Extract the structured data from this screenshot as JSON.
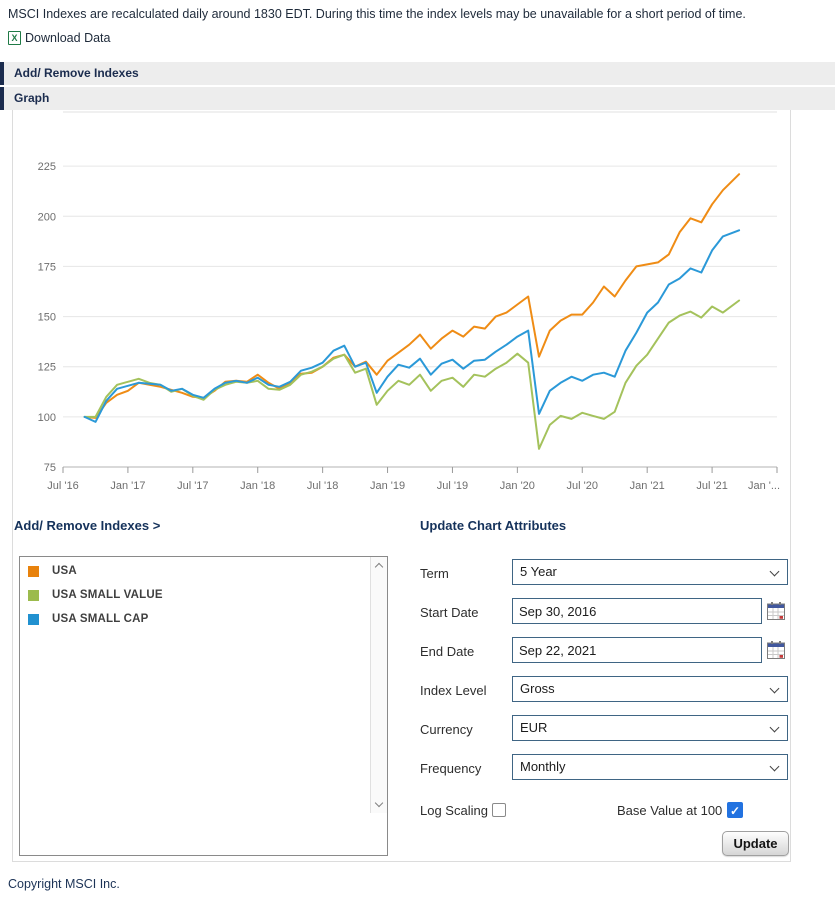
{
  "notice": "MSCI Indexes are recalculated daily around 1830 EDT. During this time the index levels may be unavailable for a short period of time.",
  "download": {
    "label": "Download Data",
    "icon_glyph": "X"
  },
  "section_bars": {
    "add_remove": "Add/ Remove Indexes",
    "graph": "Graph"
  },
  "legend_panel": {
    "heading": "Add/ Remove Indexes >",
    "items": [
      {
        "label": "USA",
        "color": "#e8820c"
      },
      {
        "label": "USA SMALL VALUE",
        "color": "#9cbb4d"
      },
      {
        "label": "USA SMALL CAP",
        "color": "#2191d0"
      }
    ]
  },
  "form": {
    "heading": "Update Chart Attributes",
    "term": {
      "label": "Term",
      "value": "5 Year"
    },
    "start_date": {
      "label": "Start Date",
      "value": "Sep 30, 2016"
    },
    "end_date": {
      "label": "End Date",
      "value": "Sep 22, 2021"
    },
    "index_level": {
      "label": "Index Level",
      "value": "Gross"
    },
    "currency": {
      "label": "Currency",
      "value": "EUR"
    },
    "frequency": {
      "label": "Frequency",
      "value": "Monthly"
    },
    "log_scaling": {
      "label": "Log Scaling",
      "checked": false
    },
    "base_value": {
      "label": "Base Value at 100",
      "checked": true
    },
    "update_label": "Update"
  },
  "icons": {
    "check": "✓"
  },
  "footer": {
    "copyright": "Copyright MSCI Inc."
  },
  "chart_data": {
    "type": "line",
    "title": "",
    "xlabel": "",
    "ylabel": "",
    "grid": true,
    "legend_position": "listbox-below-left",
    "y_ticks": [
      75,
      100,
      125,
      150,
      175,
      200,
      225
    ],
    "ylim": [
      75,
      252
    ],
    "x_unit": "months_after_jul_2016",
    "x_first_point_month": 2,
    "x_last_point_month": 62.5,
    "x_axis_months_span": 66,
    "x_ticks": [
      {
        "m": 0,
        "label": "Jul '16"
      },
      {
        "m": 6,
        "label": "Jan '17"
      },
      {
        "m": 12,
        "label": "Jul '17"
      },
      {
        "m": 18,
        "label": "Jan '18"
      },
      {
        "m": 24,
        "label": "Jul '18"
      },
      {
        "m": 30,
        "label": "Jan '19"
      },
      {
        "m": 36,
        "label": "Jul '19"
      },
      {
        "m": 42,
        "label": "Jan '20"
      },
      {
        "m": 48,
        "label": "Jul '20"
      },
      {
        "m": 54,
        "label": "Jan '21"
      },
      {
        "m": 60,
        "label": "Jul '21"
      },
      {
        "m": 66,
        "label": "Jan '..."
      }
    ],
    "point_dates": "monthly Sep 2016 through Aug 2021, final point Sep 22 2021, base value 100 at Sep 30 2016",
    "series": [
      {
        "name": "USA",
        "color": "#ef8c15",
        "values": [
          100,
          99.5,
          107,
          111,
          113,
          117,
          116,
          115,
          113.5,
          112,
          110,
          109.5,
          113,
          117.5,
          118,
          117.5,
          121,
          117,
          114,
          117,
          121.5,
          122,
          125,
          129.5,
          131,
          125,
          127.5,
          121,
          128,
          132,
          136,
          141,
          134,
          139,
          143,
          140,
          145,
          144,
          150,
          152,
          156,
          160,
          130,
          143,
          148,
          151,
          151,
          157,
          165,
          160,
          168,
          175,
          176,
          177,
          181,
          192,
          199,
          197,
          206,
          213,
          221
        ]
      },
      {
        "name": "USA SMALL VALUE",
        "color": "#a4c25c",
        "values": [
          100,
          100,
          110,
          116,
          117.5,
          119,
          117,
          116,
          112.5,
          114,
          110.5,
          108.5,
          113.5,
          116,
          117.5,
          117,
          118,
          114,
          113.5,
          116,
          121,
          122.5,
          125,
          129,
          131,
          122,
          124,
          106,
          113,
          118,
          116,
          121,
          113,
          118,
          119.5,
          115,
          121,
          120,
          124,
          127,
          131.5,
          127,
          84,
          96,
          100.5,
          99,
          102,
          100.5,
          99,
          102.5,
          117,
          125.5,
          131,
          139,
          147,
          150.5,
          152.5,
          149.5,
          155,
          152,
          158
        ]
      },
      {
        "name": "USA SMALL CAP",
        "color": "#2b99d8",
        "values": [
          100,
          97.5,
          108,
          114,
          115.5,
          117,
          116.5,
          116,
          113,
          114,
          111,
          109.5,
          114,
          117,
          118,
          117,
          119.5,
          116,
          115,
          117.5,
          123,
          124.5,
          127,
          133,
          135.5,
          125,
          127,
          112,
          120,
          126,
          124.5,
          129,
          121,
          126.5,
          128.5,
          124,
          128,
          128.5,
          132.5,
          136,
          140,
          143,
          101.5,
          113,
          117,
          120,
          118,
          121,
          122,
          120,
          133,
          142,
          152,
          157,
          166,
          169,
          174,
          172,
          183,
          190,
          193
        ]
      }
    ]
  }
}
